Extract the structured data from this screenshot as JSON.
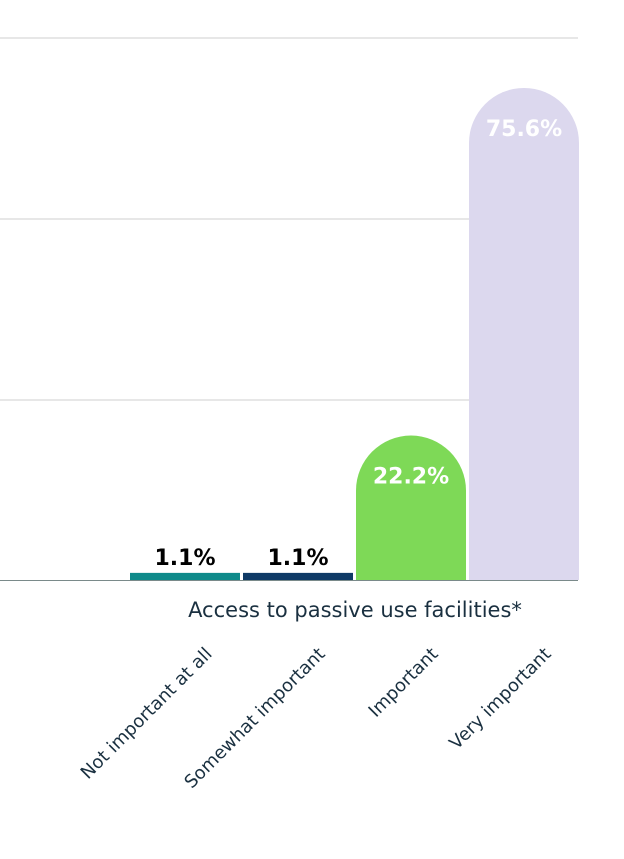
{
  "chart_data": {
    "type": "bar",
    "group_label": "Access to passive use facilities*",
    "categories": [
      "Not important at all",
      "Somewhat important",
      "Important",
      "Very important"
    ],
    "values": [
      1.1,
      1.1,
      22.2,
      75.6
    ],
    "value_labels": [
      "1.1%",
      "1.1%",
      "22.2%",
      "75.6%"
    ],
    "colors": [
      "#0e8a8a",
      "#0f3a66",
      "#7ed957",
      "#dcd8ee"
    ],
    "value_label_colors": [
      "#000000",
      "#000000",
      "#ffffff",
      "#ffffff"
    ],
    "ylim": [
      0,
      75.6
    ],
    "grid": true
  }
}
